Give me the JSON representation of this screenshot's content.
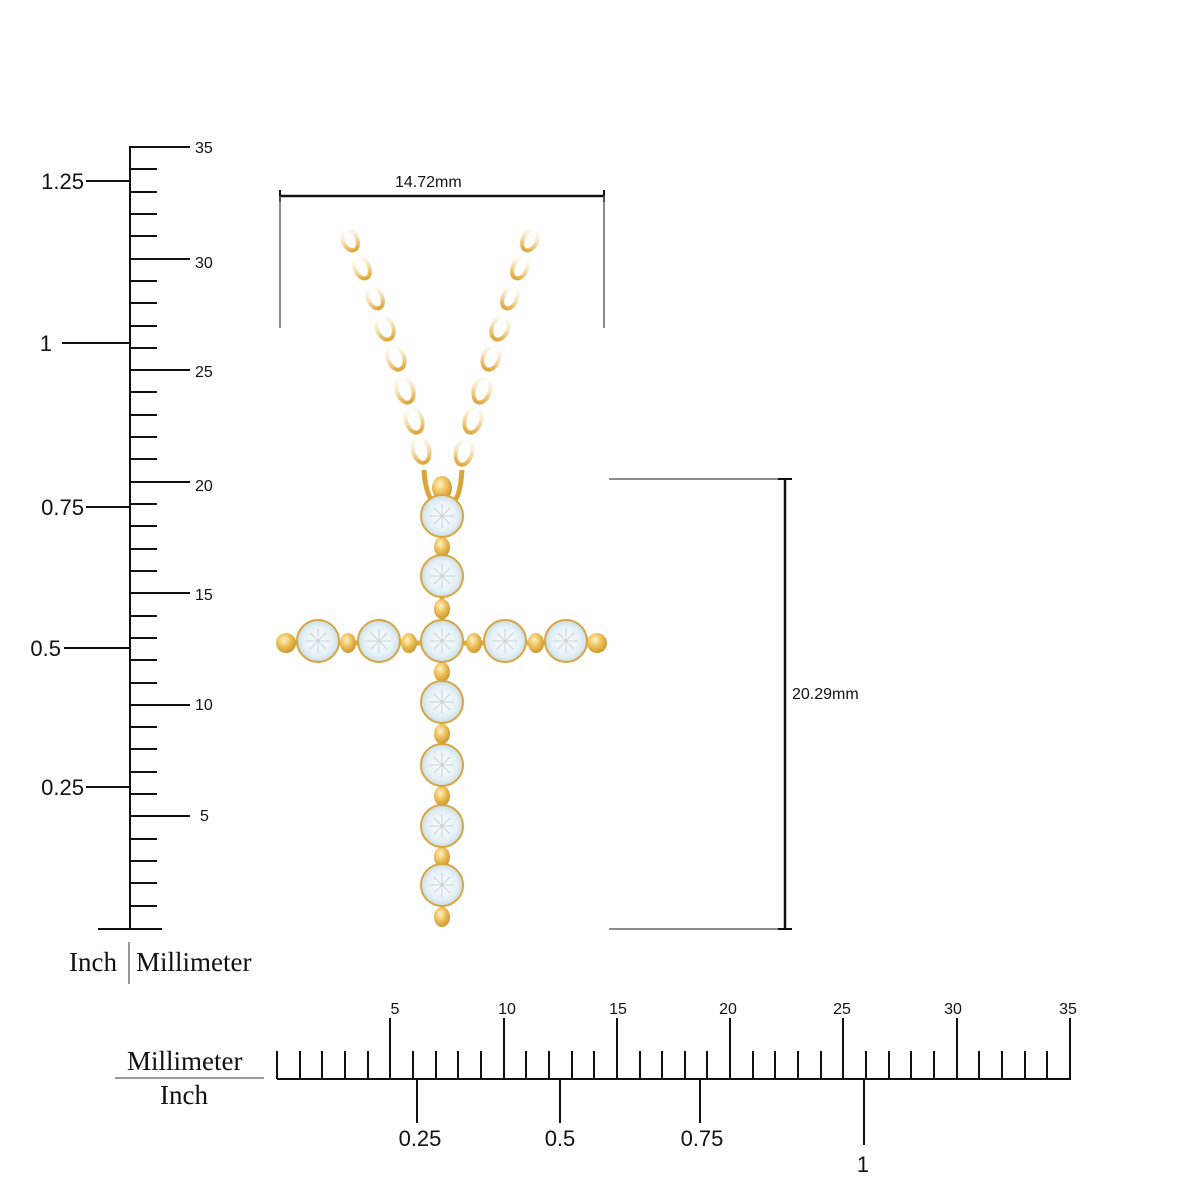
{
  "dimensions": {
    "width_label": "14.72mm",
    "height_label": "20.29mm"
  },
  "vertical_ruler": {
    "unit_labels": {
      "inch": "Inch",
      "millimeter": "Millimeter"
    },
    "mm_major_labels": [
      "35",
      "30",
      "25",
      "20",
      "15",
      "10",
      "5"
    ],
    "inch_labels": [
      "1.25",
      "1",
      "0.75",
      "0.5",
      "0.25"
    ]
  },
  "horizontal_ruler": {
    "unit_labels": {
      "millimeter": "Millimeter",
      "inch": "Inch"
    },
    "mm_major_labels": [
      "5",
      "10",
      "15",
      "20",
      "25",
      "30",
      "35"
    ],
    "inch_labels": [
      "0.25",
      "0.5",
      "0.75",
      "1"
    ]
  },
  "product": {
    "type": "cross pendant necklace",
    "metal_color": "#e8b54a",
    "stone_color": "#dfeef5",
    "stone_count": 11
  },
  "colors": {
    "ink": "#111111",
    "guide_line": "#555555",
    "gold": "#e8b54a",
    "gold_shade": "#c58f25"
  }
}
